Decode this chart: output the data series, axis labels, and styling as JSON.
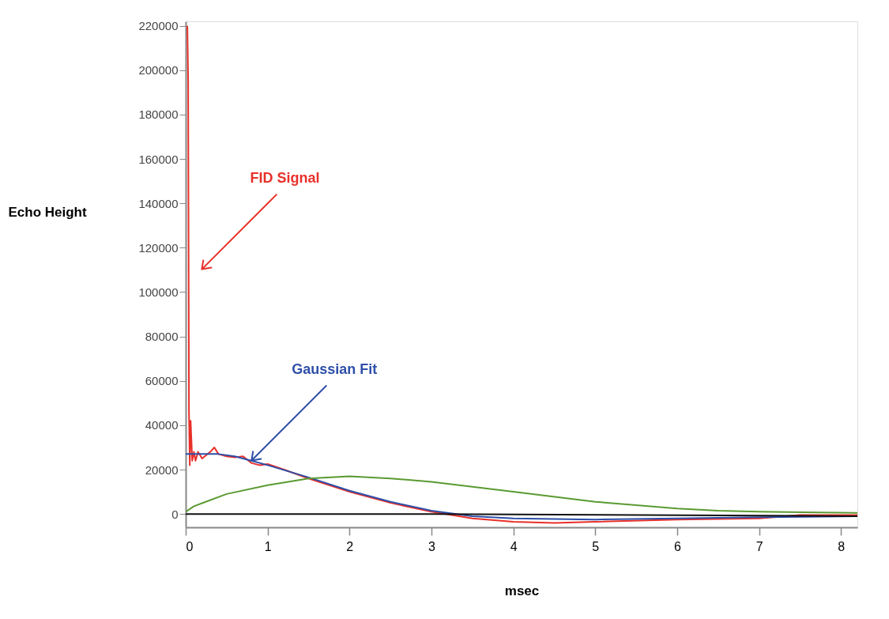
{
  "chart_data": {
    "type": "line",
    "xlabel": "msec",
    "ylabel": "Echo Height",
    "xlim": [
      0,
      8.2
    ],
    "ylim": [
      -6000,
      222000
    ],
    "xticks": [
      0,
      1,
      2,
      3,
      4,
      5,
      6,
      7,
      8
    ],
    "yticks": [
      0,
      20000,
      40000,
      60000,
      80000,
      100000,
      120000,
      140000,
      160000,
      180000,
      200000,
      220000
    ],
    "grid": false,
    "legend": false,
    "marker": "none",
    "line_style": "solid",
    "series": [
      {
        "color": "#e8302a",
        "x": [
          0.02,
          0.03,
          0.04,
          0.05,
          0.06,
          0.08,
          0.1,
          0.12,
          0.15,
          0.2,
          0.3,
          0.35,
          0.4,
          0.5,
          0.6,
          0.7,
          0.8,
          0.9,
          1.0,
          1.2,
          1.5,
          2.0,
          2.5,
          3.0,
          3.5,
          4.0,
          4.5,
          5.0,
          6.0,
          7.0,
          7.5,
          8.2
        ],
        "values": [
          220000,
          195000,
          46000,
          22000,
          42000,
          24000,
          28000,
          24000,
          28000,
          25000,
          28000,
          30000,
          27000,
          26000,
          25500,
          26000,
          23000,
          22000,
          22500,
          20000,
          16000,
          10000,
          5000,
          1000,
          -2000,
          -3500,
          -4000,
          -3500,
          -2500,
          -2000,
          -500,
          -500
        ]
      },
      {
        "color": "#2e4fa8",
        "x": [
          0,
          0.4,
          0.6,
          0.8,
          1.0,
          1.5,
          2.0,
          2.5,
          3.0,
          3.5,
          4.0,
          5.0,
          6.0,
          7.0,
          8.2
        ],
        "values": [
          27000,
          27000,
          26000,
          24000,
          22000,
          16500,
          10500,
          5500,
          1500,
          -1000,
          -2000,
          -2500,
          -2000,
          -1500,
          -1000
        ]
      },
      {
        "color": "#5a9a32",
        "x": [
          0,
          0.1,
          0.5,
          1.0,
          1.5,
          2.0,
          2.5,
          3.0,
          4.0,
          5.0,
          6.0,
          6.5,
          7.0,
          8.2
        ],
        "values": [
          1000,
          3500,
          9000,
          13000,
          16000,
          17000,
          16000,
          14500,
          10000,
          5500,
          2500,
          1500,
          1000,
          500
        ]
      },
      {
        "color": "#111111",
        "x": [
          0,
          3.0,
          8.2
        ],
        "values": [
          0,
          0,
          -1000
        ]
      }
    ],
    "annotations": [
      "FID Signal",
      "Gaussian Fit"
    ]
  }
}
